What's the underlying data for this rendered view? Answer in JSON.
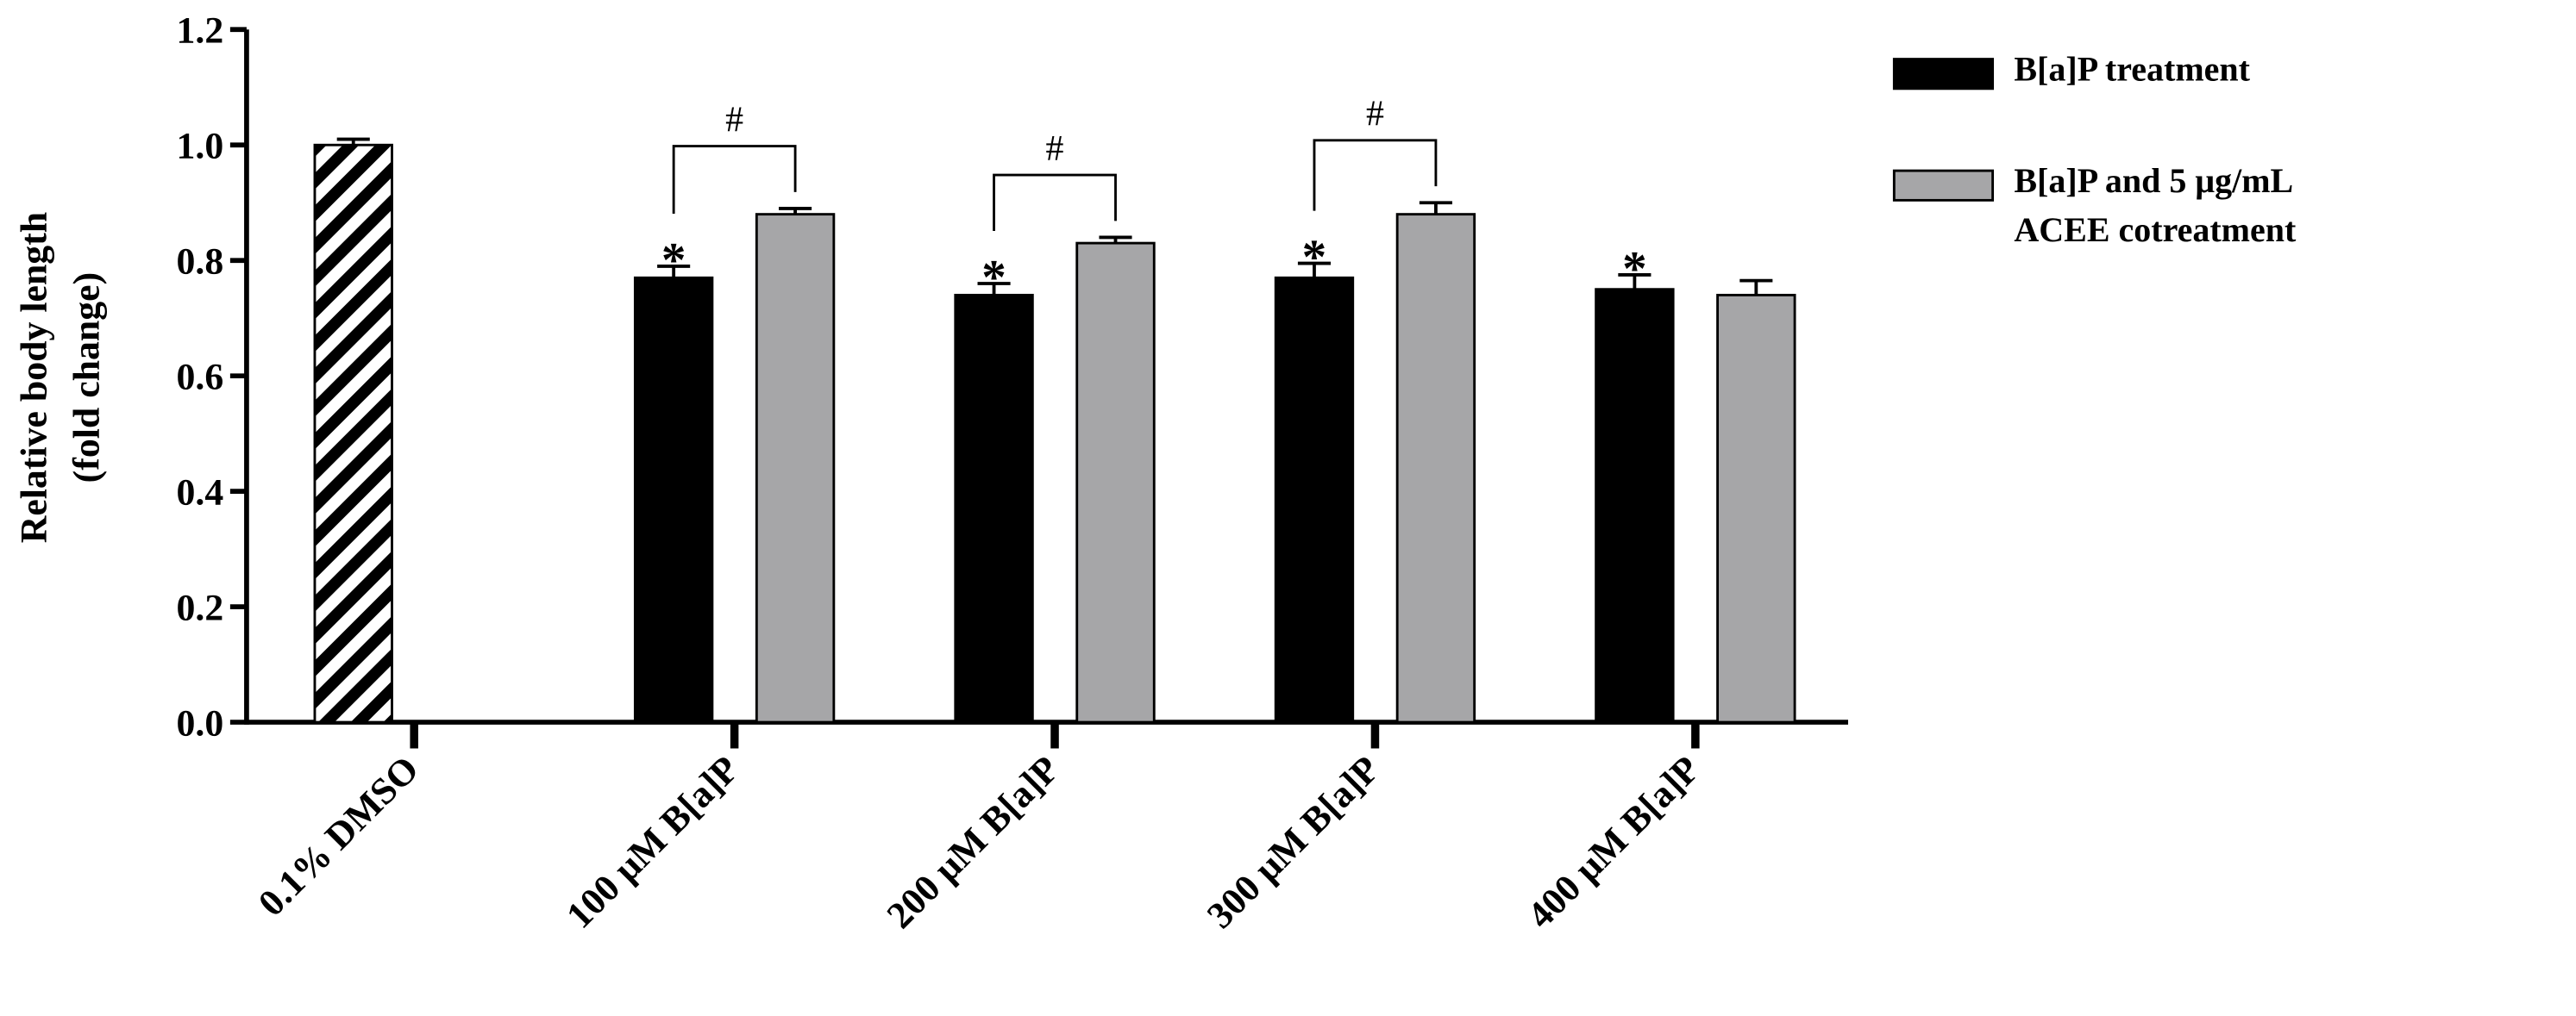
{
  "chart_data": {
    "type": "bar",
    "ylabel": [
      "Relative body length",
      "(fold change)"
    ],
    "categories": [
      "0.1% DMSO",
      "100 μM B[a]P",
      "200 μM B[a]P",
      "300 μM B[a]P",
      "400 μM B[a]P"
    ],
    "control": {
      "values": [
        1.0,
        null,
        null,
        null,
        null
      ],
      "errors": [
        0.01,
        null,
        null,
        null,
        null
      ],
      "pattern": "hatch",
      "color": "#000000"
    },
    "series": [
      {
        "name": "B[a]P treatment",
        "color": "#000000",
        "values": [
          null,
          0.77,
          0.74,
          0.77,
          0.75
        ],
        "errors": [
          null,
          0.02,
          0.02,
          0.025,
          0.025
        ]
      },
      {
        "name": "B[a]P and 5 μg/mL ACEE cotreatment",
        "color": "#a6a6a8",
        "values": [
          null,
          0.88,
          0.83,
          0.88,
          0.74
        ],
        "errors": [
          null,
          0.01,
          0.01,
          0.02,
          0.025
        ]
      }
    ],
    "annotations": [
      {
        "text": "*",
        "category": 1,
        "series": 0
      },
      {
        "text": "*",
        "category": 2,
        "series": 0
      },
      {
        "text": "*",
        "category": 3,
        "series": 0
      },
      {
        "text": "*",
        "category": 4,
        "series": 0
      },
      {
        "text": "#",
        "category": 1,
        "bracket": true
      },
      {
        "text": "#",
        "category": 2,
        "bracket": true
      },
      {
        "text": "#",
        "category": 3,
        "bracket": true
      }
    ],
    "ylim": [
      0,
      1.2
    ],
    "yticks": [
      {
        "value": 0,
        "label": "0.0"
      },
      0.2,
      0.4,
      0.6,
      0.8,
      {
        "value": 1.0,
        "label": "1.0"
      },
      1.2
    ],
    "legend": "top-right"
  }
}
